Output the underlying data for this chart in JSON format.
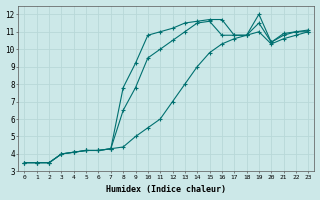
{
  "xlabel": "Humidex (Indice chaleur)",
  "ylabel": "",
  "background_color": "#cce8e8",
  "grid_color": "#b8d8d8",
  "line_color": "#007070",
  "xlim": [
    -0.5,
    23.5
  ],
  "ylim": [
    3,
    12.5
  ],
  "xticks": [
    0,
    1,
    2,
    3,
    4,
    5,
    6,
    7,
    8,
    9,
    10,
    11,
    12,
    13,
    14,
    15,
    16,
    17,
    18,
    19,
    20,
    21,
    22,
    23
  ],
  "yticks": [
    3,
    4,
    5,
    6,
    7,
    8,
    9,
    10,
    11,
    12
  ],
  "series": [
    {
      "x": [
        0,
        1,
        2,
        3,
        4,
        5,
        6,
        7,
        8,
        9,
        10,
        11,
        12,
        13,
        14,
        15,
        16,
        17,
        18,
        19,
        20,
        21,
        22,
        23
      ],
      "y": [
        3.5,
        3.5,
        3.5,
        4.0,
        4.1,
        4.2,
        4.2,
        4.3,
        7.8,
        9.2,
        10.8,
        11.0,
        11.2,
        11.5,
        11.6,
        11.7,
        11.7,
        10.8,
        10.8,
        12.0,
        10.4,
        10.9,
        11.0,
        11.1
      ]
    },
    {
      "x": [
        0,
        1,
        2,
        3,
        4,
        5,
        6,
        7,
        8,
        9,
        10,
        11,
        12,
        13,
        14,
        15,
        16,
        17,
        18,
        19,
        20,
        21,
        22,
        23
      ],
      "y": [
        3.5,
        3.5,
        3.5,
        4.0,
        4.1,
        4.2,
        4.2,
        4.3,
        6.5,
        7.8,
        9.5,
        10.0,
        10.5,
        11.0,
        11.5,
        11.6,
        10.8,
        10.8,
        10.8,
        11.5,
        10.4,
        10.8,
        11.0,
        11.0
      ]
    },
    {
      "x": [
        0,
        1,
        2,
        3,
        4,
        5,
        6,
        7,
        8,
        9,
        10,
        11,
        12,
        13,
        14,
        15,
        16,
        17,
        18,
        19,
        20,
        21,
        22,
        23
      ],
      "y": [
        3.5,
        3.5,
        3.5,
        4.0,
        4.1,
        4.2,
        4.2,
        4.3,
        4.4,
        5.0,
        5.5,
        6.0,
        7.0,
        8.0,
        9.0,
        9.8,
        10.3,
        10.6,
        10.8,
        11.0,
        10.3,
        10.6,
        10.8,
        11.0
      ]
    }
  ]
}
